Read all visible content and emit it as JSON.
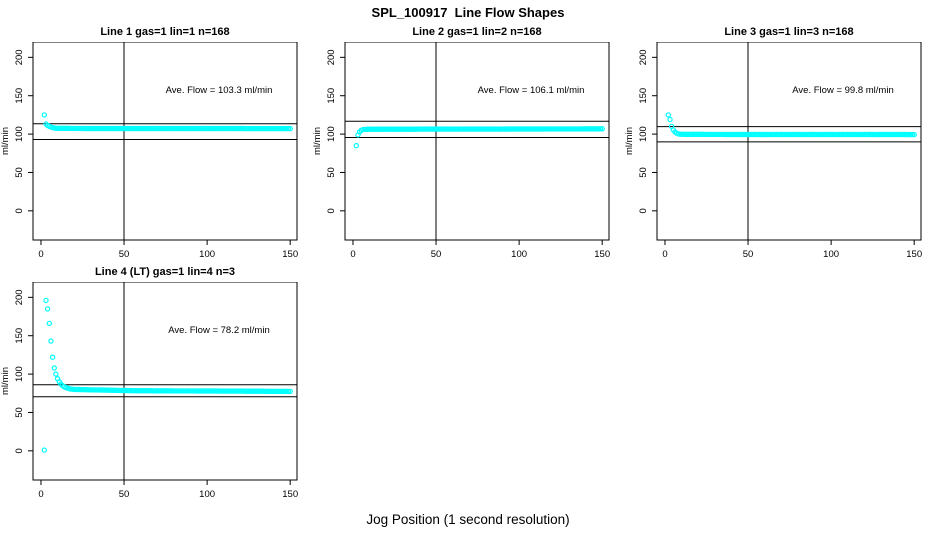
{
  "window": {
    "title": "SPL_100917  Line Flow Shapes",
    "xlabel": "Jog Position (1 second resolution)"
  },
  "chart_data": {
    "type": "scatter",
    "marker": "open-circle",
    "point_color": "#00FFFF",
    "line_color": "#000000",
    "axes": {
      "x_ticks": [
        0,
        50,
        100,
        150
      ],
      "y_ticks": [
        0,
        50,
        100,
        150,
        200
      ],
      "x_range": [
        -4.8,
        154.1
      ],
      "y_range": [
        -38,
        220
      ],
      "ylabel": "ml/min",
      "vline_x": 50,
      "grid": false
    },
    "panels": [
      {
        "title": "Line 1 gas=1 lin=1 n=168",
        "n": 168,
        "ave_flow": 103.3,
        "annotation": "Ave. Flow =  103.3  ml/min",
        "ref_lines_y": [
          113.6,
          93.0
        ],
        "head_points": [
          [
            2,
            125
          ],
          [
            3,
            113.2
          ],
          [
            4,
            111.3
          ],
          [
            5,
            110.1
          ],
          [
            6,
            109.2
          ],
          [
            7,
            108.5
          ],
          [
            8,
            108.0
          ],
          [
            9,
            107.7
          ]
        ],
        "band": {
          "x_from": 10,
          "x_mid": 30,
          "x_to": 150,
          "y_from": 107.6,
          "y_mid": 107.3,
          "y_to": 107.2
        }
      },
      {
        "title": "Line 2 gas=1 lin=2 n=168",
        "n": 168,
        "ave_flow": 106.1,
        "annotation": "Ave. Flow =  106.1  ml/min",
        "ref_lines_y": [
          116.7,
          95.5
        ],
        "head_points": [
          [
            2,
            85
          ],
          [
            3,
            99
          ],
          [
            4,
            103
          ],
          [
            5,
            105
          ],
          [
            6,
            105.8
          ],
          [
            7,
            106.1
          ],
          [
            8,
            106.3
          ],
          [
            9,
            106.4
          ]
        ],
        "band": {
          "x_from": 10,
          "x_mid": 80,
          "x_to": 150,
          "y_from": 106.4,
          "y_mid": 106.5,
          "y_to": 106.9
        }
      },
      {
        "title": "Line 3 gas=1 lin=3 n=168",
        "n": 168,
        "ave_flow": 99.8,
        "annotation": "Ave. Flow =  99.8  ml/min",
        "ref_lines_y": [
          109.8,
          89.8
        ],
        "head_points": [
          [
            2,
            125
          ],
          [
            3,
            119
          ],
          [
            4,
            110
          ],
          [
            5,
            105.5
          ],
          [
            6,
            102.9
          ],
          [
            7,
            101.3
          ],
          [
            8,
            100.4
          ],
          [
            9,
            99.9
          ]
        ],
        "band": {
          "x_from": 10,
          "x_mid": 40,
          "x_to": 150,
          "y_from": 99.8,
          "y_mid": 99.5,
          "y_to": 99.4
        }
      },
      {
        "title": "Line 4 (LT) gas=1 lin=4 n=3",
        "n": 3,
        "ave_flow": 78.2,
        "annotation": "Ave. Flow =  78.2  ml/min",
        "ref_lines_y": [
          86.0,
          70.4
        ],
        "head_points": [
          [
            2,
            1
          ],
          [
            3,
            196
          ],
          [
            4,
            185
          ],
          [
            5,
            166
          ],
          [
            6,
            143
          ],
          [
            7,
            122
          ],
          [
            8,
            108
          ],
          [
            9,
            100
          ],
          [
            10,
            94
          ],
          [
            11,
            90
          ],
          [
            12,
            87
          ],
          [
            13,
            85
          ],
          [
            14,
            83.5
          ],
          [
            15,
            82.5
          ],
          [
            16,
            81.7
          ],
          [
            17,
            81
          ],
          [
            18,
            80.6
          ],
          [
            19,
            80.3
          ]
        ],
        "band": {
          "x_from": 20,
          "x_mid": 55,
          "x_to": 150,
          "y_from": 80,
          "y_mid": 78.4,
          "y_to": 77.5
        }
      }
    ]
  }
}
